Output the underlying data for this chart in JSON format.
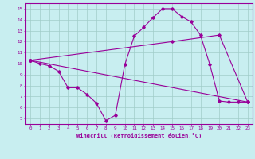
{
  "xlabel": "Windchill (Refroidissement éolien,°C)",
  "bg_color": "#c8eef0",
  "line_color": "#990099",
  "grid_color": "#a0ccc8",
  "xticks": [
    0,
    1,
    2,
    3,
    4,
    5,
    6,
    7,
    8,
    9,
    10,
    11,
    12,
    13,
    14,
    15,
    16,
    17,
    18,
    19,
    20,
    21,
    22,
    23
  ],
  "yticks": [
    5,
    6,
    7,
    8,
    9,
    10,
    11,
    12,
    13,
    14,
    15
  ],
  "line1_x": [
    0,
    1,
    2,
    3,
    4,
    5,
    6,
    7,
    8,
    9,
    10,
    11,
    12,
    13,
    14,
    15,
    16,
    17,
    18,
    19,
    20,
    21,
    22,
    23
  ],
  "line1_y": [
    10.3,
    10.0,
    9.8,
    9.3,
    7.8,
    7.8,
    7.2,
    6.4,
    4.8,
    5.3,
    9.9,
    12.5,
    13.3,
    14.2,
    15.0,
    15.0,
    14.3,
    13.8,
    12.6,
    9.9,
    6.6,
    6.5,
    6.5,
    6.5
  ],
  "line2_x": [
    0,
    23
  ],
  "line2_y": [
    10.3,
    6.5
  ],
  "line3_x": [
    0,
    15,
    20,
    23
  ],
  "line3_y": [
    10.3,
    12.0,
    12.6,
    6.5
  ]
}
